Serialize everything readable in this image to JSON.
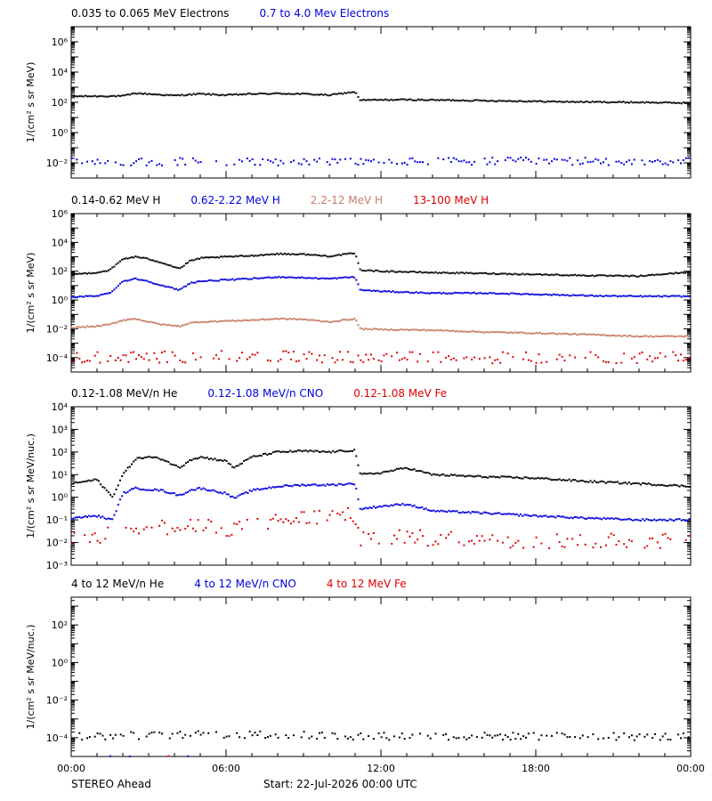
{
  "footer": {
    "left": "STEREO Ahead",
    "center": "Start: 22-Jul-2026 00:00 UTC"
  },
  "colors": {
    "black": "#000000",
    "blue": "#0000dd",
    "salmon": "#c87c64",
    "red": "#dd0000",
    "frame": "#000000",
    "background": "#ffffff"
  },
  "x_axis": {
    "unit": "hours",
    "range": [
      0,
      24
    ],
    "ticks": [
      {
        "value": 0,
        "label": "00:00"
      },
      {
        "value": 6,
        "label": "06:00"
      },
      {
        "value": 12,
        "label": "12:00"
      },
      {
        "value": 18,
        "label": "18:00"
      },
      {
        "value": 24,
        "label": "00:00"
      }
    ],
    "minor_step_hours": 1
  },
  "chart_data": [
    {
      "type": "scatter",
      "ylabel": "1/(cm² s sr MeV)",
      "yscale": "log",
      "ylim": [
        0.001,
        10000000
      ],
      "yticks": [
        {
          "value": 1000000.0,
          "label": "10⁶"
        },
        {
          "value": 10000.0,
          "label": "10⁴"
        },
        {
          "value": 100.0,
          "label": "10²"
        },
        {
          "value": 1.0,
          "label": "10⁰"
        },
        {
          "value": 0.01,
          "label": "10⁻²"
        }
      ],
      "legend": [
        {
          "label": "0.035 to 0.065 MeV Electrons",
          "color": "#000000"
        },
        {
          "label": "0.7 to 4.0 Mev Electrons",
          "color": "#0000dd"
        }
      ],
      "series": [
        {
          "name": "0.035 to 0.065 MeV Electrons",
          "color": "#000000",
          "style": "dense",
          "x": [
            0,
            2,
            2.5,
            4,
            5,
            6,
            7,
            8,
            9,
            10,
            11,
            11.2,
            13,
            16,
            19,
            22,
            24
          ],
          "y": [
            250,
            260,
            400,
            280,
            360,
            300,
            360,
            380,
            360,
            300,
            500,
            140,
            150,
            130,
            110,
            100,
            90
          ]
        },
        {
          "name": "0.7 to 4.0 Mev Electrons",
          "color": "#0000dd",
          "style": "sparse",
          "x": [
            0,
            6,
            12,
            18,
            24
          ],
          "y": [
            0.012,
            0.012,
            0.012,
            0.013,
            0.012
          ],
          "scatter_decades": 0.25
        }
      ]
    },
    {
      "type": "scatter",
      "ylabel": "1/(cm² s sr MeV)",
      "yscale": "log",
      "ylim": [
        1e-05,
        1000000
      ],
      "yticks": [
        {
          "value": 1000000.0,
          "label": "10⁶"
        },
        {
          "value": 10000.0,
          "label": "10⁴"
        },
        {
          "value": 100.0,
          "label": "10²"
        },
        {
          "value": 1.0,
          "label": "10⁰"
        },
        {
          "value": 0.01,
          "label": "10⁻²"
        },
        {
          "value": 0.0001,
          "label": "10⁻⁴"
        }
      ],
      "legend": [
        {
          "label": "0.14-0.62 MeV H",
          "color": "#000000"
        },
        {
          "label": "0.62-2.22 MeV H",
          "color": "#0000dd"
        },
        {
          "label": "2.2-12 MeV H",
          "color": "#c87c64"
        },
        {
          "label": "13-100 MeV H",
          "color": "#dd0000"
        }
      ],
      "series": [
        {
          "name": "0.14-0.62 MeV H",
          "color": "#000000",
          "style": "dense",
          "x": [
            0,
            1,
            1.5,
            2,
            2.5,
            3,
            3.5,
            4.2,
            4.6,
            5,
            6,
            7,
            8,
            9,
            10,
            11,
            11.2,
            12,
            14,
            16,
            18,
            20,
            22,
            24
          ],
          "y": [
            60,
            80,
            120,
            700,
            1000,
            700,
            400,
            150,
            500,
            800,
            1000,
            1200,
            1600,
            1500,
            1100,
            1800,
            120,
            100,
            80,
            70,
            60,
            50,
            45,
            90
          ]
        },
        {
          "name": "0.62-2.22 MeV H",
          "color": "#0000dd",
          "style": "dense",
          "x": [
            0,
            1,
            1.5,
            2,
            2.5,
            3,
            3.5,
            4.2,
            4.6,
            5,
            6,
            7,
            8,
            9,
            10,
            11,
            11.2,
            12,
            14,
            16,
            18,
            20,
            22,
            24
          ],
          "y": [
            1.5,
            2,
            3,
            20,
            30,
            20,
            10,
            5,
            15,
            20,
            25,
            30,
            40,
            35,
            30,
            40,
            5,
            4,
            3,
            3,
            2.5,
            2,
            1.8,
            1.8
          ]
        },
        {
          "name": "2.2-12 MeV H",
          "color": "#c87c64",
          "style": "dense",
          "x": [
            0,
            1,
            1.5,
            2,
            2.5,
            3,
            3.5,
            4.2,
            4.6,
            5,
            6,
            7,
            8,
            9,
            10,
            11,
            11.2,
            12,
            14,
            16,
            18,
            20,
            22,
            24
          ],
          "y": [
            0.012,
            0.015,
            0.02,
            0.04,
            0.05,
            0.03,
            0.02,
            0.015,
            0.025,
            0.03,
            0.035,
            0.04,
            0.05,
            0.045,
            0.03,
            0.05,
            0.01,
            0.009,
            0.008,
            0.006,
            0.005,
            0.004,
            0.003,
            0.003
          ]
        },
        {
          "name": "13-100 MeV H",
          "color": "#dd0000",
          "style": "sparse",
          "x": [
            0,
            6,
            12,
            18,
            24
          ],
          "y": [
            0.0001,
            0.00012,
            0.0001,
            0.0001,
            0.0001
          ],
          "scatter_decades": 0.4
        }
      ]
    },
    {
      "type": "scatter",
      "ylabel": "1/(cm² s sr MeV/nuc.)",
      "yscale": "log",
      "ylim": [
        0.001,
        10000
      ],
      "yticks": [
        {
          "value": 10000.0,
          "label": "10⁴"
        },
        {
          "value": 1000.0,
          "label": "10³"
        },
        {
          "value": 100.0,
          "label": "10²"
        },
        {
          "value": 10.0,
          "label": "10¹"
        },
        {
          "value": 1.0,
          "label": "10⁰"
        },
        {
          "value": 0.1,
          "label": "10⁻¹"
        },
        {
          "value": 0.01,
          "label": "10⁻²"
        },
        {
          "value": 0.001,
          "label": "10⁻³"
        }
      ],
      "legend": [
        {
          "label": "0.12-1.08 MeV/n He",
          "color": "#000000"
        },
        {
          "label": "0.12-1.08 MeV/n CNO",
          "color": "#0000dd"
        },
        {
          "label": "0.12-1.08 MeV Fe",
          "color": "#dd0000"
        }
      ],
      "series": [
        {
          "name": "0.12-1.08 MeV/n He",
          "color": "#000000",
          "style": "dense",
          "x": [
            0,
            1,
            1.6,
            2,
            2.5,
            3,
            3.5,
            4.2,
            4.6,
            5,
            6,
            6.3,
            7,
            8,
            9,
            10,
            11,
            11.2,
            12,
            13,
            14,
            16,
            18,
            20,
            22,
            24
          ],
          "y": [
            4,
            6,
            1,
            10,
            50,
            60,
            50,
            20,
            45,
            60,
            40,
            20,
            60,
            100,
            110,
            100,
            120,
            10,
            12,
            20,
            10,
            8,
            7,
            5,
            4,
            3
          ]
        },
        {
          "name": "0.12-1.08 MeV/n CNO",
          "color": "#0000dd",
          "style": "dense",
          "x": [
            0,
            1,
            1.6,
            2,
            2.5,
            3,
            3.5,
            4.2,
            4.6,
            5,
            6,
            6.3,
            7,
            8,
            9,
            10,
            11,
            11.2,
            12,
            13,
            14,
            16,
            18,
            20,
            22,
            24
          ],
          "y": [
            0.12,
            0.15,
            0.1,
            1.5,
            2.5,
            2.2,
            2,
            1.2,
            2,
            2.5,
            1.5,
            0.9,
            2,
            3,
            3.5,
            3.5,
            4,
            0.3,
            0.4,
            0.5,
            0.25,
            0.2,
            0.15,
            0.12,
            0.1,
            0.1
          ]
        },
        {
          "name": "0.12-1.08 MeV Fe",
          "color": "#dd0000",
          "style": "sparse",
          "x": [
            0,
            1,
            2,
            3,
            4,
            5,
            6,
            7,
            8,
            9,
            10,
            11,
            11.2,
            12,
            14,
            16,
            18,
            20,
            22,
            24
          ],
          "y": [
            0.012,
            0.015,
            0.05,
            0.06,
            0.04,
            0.05,
            0.04,
            0.06,
            0.09,
            0.12,
            0.15,
            0.15,
            0.015,
            0.02,
            0.015,
            0.015,
            0.012,
            0.012,
            0.012,
            0.012
          ],
          "scatter_decades": 0.35
        }
      ]
    },
    {
      "type": "scatter",
      "ylabel": "1/(cm² s sr MeV/nuc.)",
      "yscale": "log",
      "ylim": [
        1e-05,
        3000
      ],
      "yticks": [
        {
          "value": 100.0,
          "label": "10²"
        },
        {
          "value": 1.0,
          "label": "10⁰"
        },
        {
          "value": 0.01,
          "label": "10⁻²"
        },
        {
          "value": 0.0001,
          "label": "10⁻⁴"
        }
      ],
      "legend": [
        {
          "label": "4 to 12 MeV/n He",
          "color": "#000000"
        },
        {
          "label": "4 to 12 MeV/n CNO",
          "color": "#0000dd"
        },
        {
          "label": "4 to 12 MeV Fe",
          "color": "#dd0000"
        }
      ],
      "series": [
        {
          "name": "4 to 12 MeV/n He",
          "color": "#000000",
          "style": "sparse",
          "x": [
            0,
            6,
            12,
            18,
            24
          ],
          "y": [
            0.00012,
            0.00015,
            0.00012,
            0.00012,
            0.00011
          ],
          "scatter_decades": 0.2
        },
        {
          "name": "4 to 12 MeV/n CNO",
          "color": "#0000dd",
          "style": "rare",
          "x": [
            0,
            1.5,
            3,
            4.5
          ],
          "y": [
            1e-05,
            1e-05,
            1e-05,
            1e-05
          ],
          "scatter_decades": 0.02
        },
        {
          "name": "4 to 12 MeV Fe",
          "color": "#dd0000",
          "style": "rare",
          "x": [
            3.6
          ],
          "y": [
            1e-05
          ],
          "scatter_decades": 0.02
        }
      ]
    }
  ]
}
